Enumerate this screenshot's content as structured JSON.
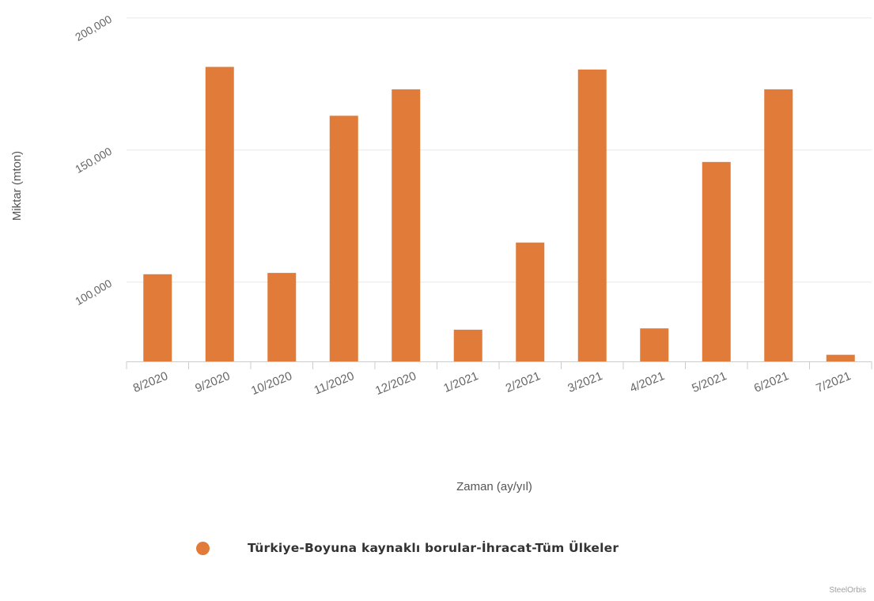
{
  "colors": {
    "bar": "#e07b39",
    "grid": "#e8e8e8",
    "axis_line": "#cccccc",
    "tick_text": "#666666",
    "title_text": "#555555"
  },
  "chart_data": {
    "type": "bar",
    "title": "",
    "xlabel": "Zaman (ay/yıl)",
    "ylabel": "Miktar (mton)",
    "categories": [
      "8/2020",
      "9/2020",
      "10/2020",
      "11/2020",
      "12/2020",
      "1/2021",
      "2/2021",
      "3/2021",
      "4/2021",
      "5/2021",
      "6/2021",
      "7/2021"
    ],
    "series": [
      {
        "name": "Türkiye-Boyuna kaynaklı borular-İhracat-Tüm Ülkeler",
        "values": [
          103000,
          181500,
          103500,
          163000,
          173000,
          82000,
          115000,
          180500,
          82500,
          145500,
          173000,
          72500
        ]
      }
    ],
    "ylim": [
      70000,
      200000
    ],
    "yticks": [
      100000,
      150000,
      200000
    ],
    "ytick_labels": [
      "100,000",
      "150,000",
      "200,000"
    ],
    "grid": true,
    "legend_position": "bottom-center"
  },
  "credits": "SteelOrbis"
}
